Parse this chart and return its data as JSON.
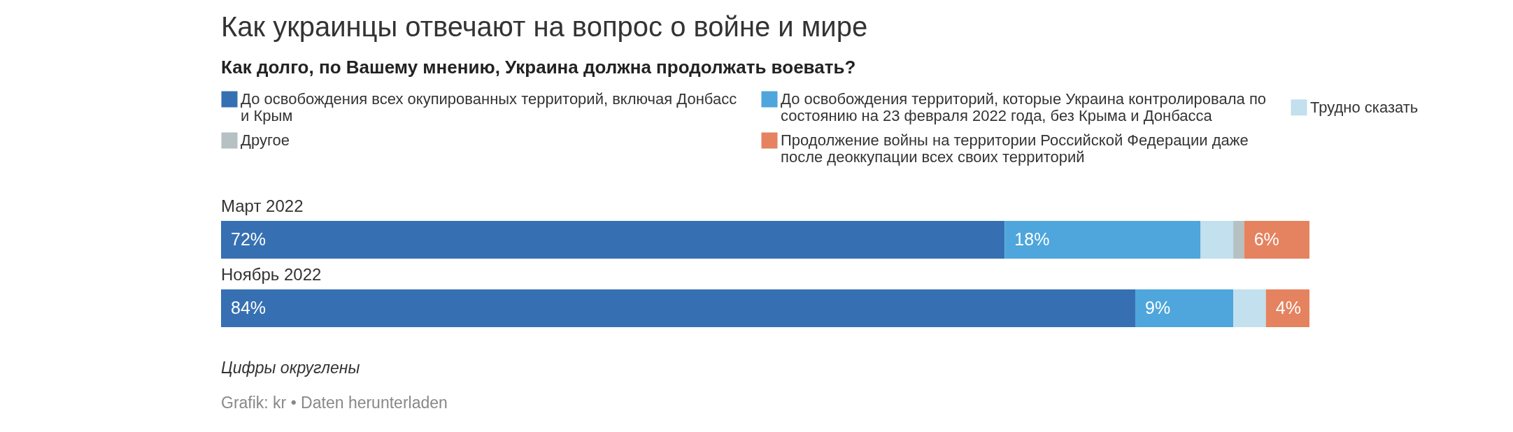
{
  "chart_data": {
    "type": "bar",
    "orientation": "horizontal",
    "stacked": true,
    "title": "Как украинцы отвечают на вопрос о войне и мире",
    "subtitle": "Как долго, по Вашему мнению, Украина должна продолжать воевать?",
    "categories": [
      "Март 2022",
      "Ноябрь 2022"
    ],
    "series": [
      {
        "name": "До освобождения всех окупированных территорий, включая Донбасс и Крым",
        "color": "#3670b3",
        "values": [
          72,
          84
        ],
        "value_labels": [
          "72%",
          "84%"
        ]
      },
      {
        "name": "До освобождения территорий, которые Украина контролировала по состоянию на 23 февраля 2022 года, без Крыма и Донбасса",
        "color": "#4ea6dc",
        "values": [
          18,
          9
        ],
        "value_labels": [
          "18%",
          "9%"
        ]
      },
      {
        "name": "Трудно сказать",
        "color": "#c2e0ee",
        "values": [
          3,
          3
        ],
        "value_labels": [
          null,
          null
        ]
      },
      {
        "name": "Другое",
        "color": "#b5c1c3",
        "values": [
          1,
          null
        ],
        "value_labels": [
          null,
          null
        ]
      },
      {
        "name": "Продолжение войны на территории Российской Федерации даже после деоккупации всех своих территорий",
        "color": "#e5825f",
        "values": [
          6,
          4
        ],
        "value_labels": [
          "6%",
          "4%"
        ]
      }
    ],
    "xlim": [
      0,
      100
    ],
    "legend": "top",
    "tick_labels": "y",
    "annotations": [
      "Цифры округлены",
      "Grafik: kr • Daten herunterladen"
    ]
  }
}
